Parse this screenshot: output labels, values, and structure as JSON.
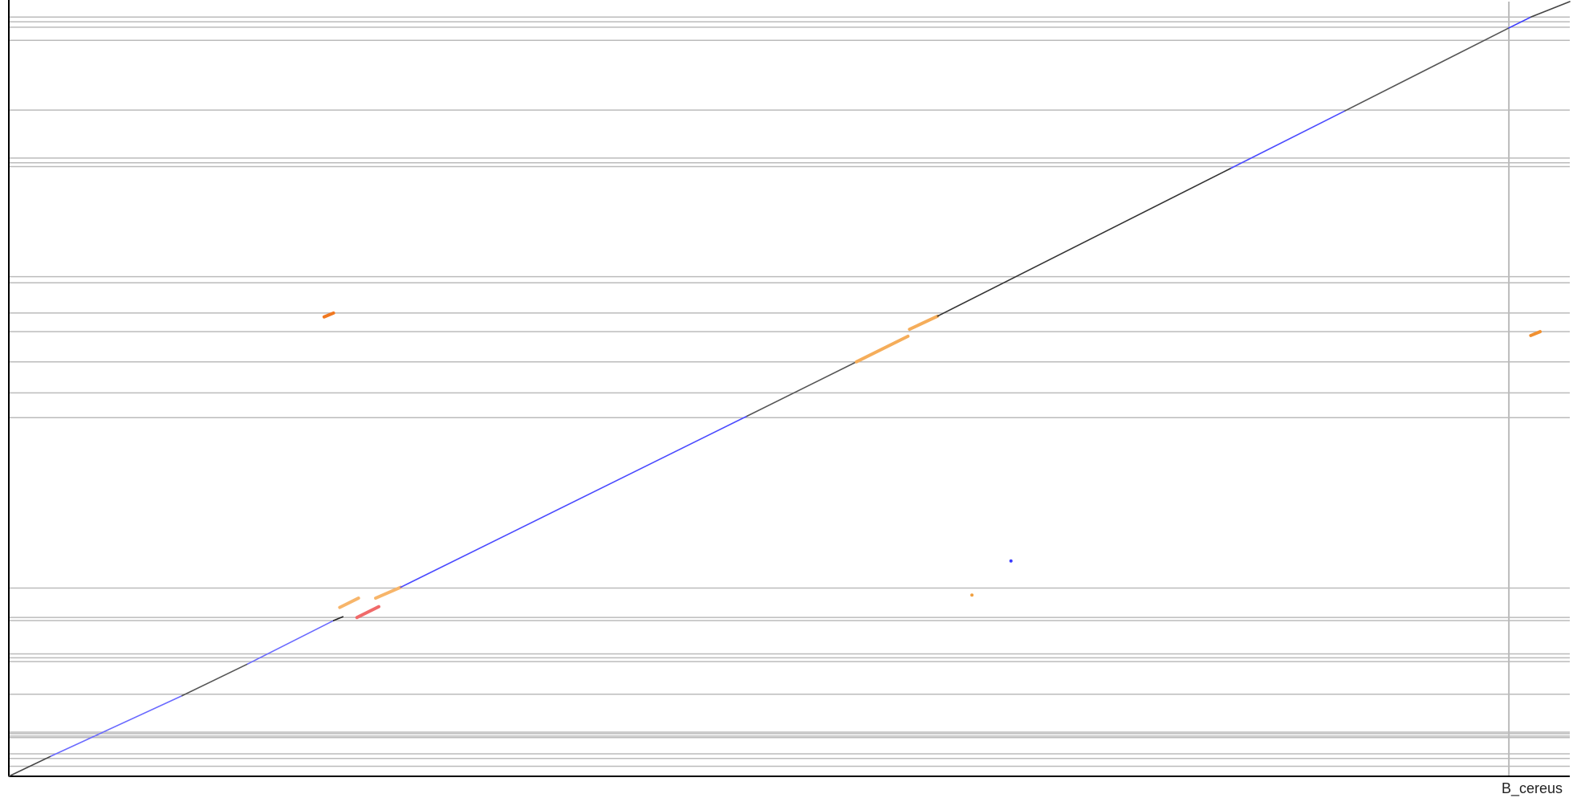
{
  "chart_data": {
    "type": "dotplot",
    "x_label": "B_cereus",
    "xlim": [
      0,
      100
    ],
    "ylim": [
      0,
      100
    ],
    "grid_color": "#bbbbbb",
    "y_boundaries": [
      98.0,
      97.4,
      96.7,
      95.0,
      86.0,
      79.8,
      79.2,
      78.7,
      64.5,
      63.7,
      59.8,
      57.4,
      53.5,
      49.5,
      46.3,
      24.3,
      20.5,
      20.1,
      15.8,
      15.3,
      14.8,
      10.6,
      5.7,
      5.5,
      5.2,
      5.0,
      2.9,
      2.3,
      1.3
    ],
    "x_boundaries": [
      96.1
    ],
    "segments": [
      {
        "x": [
          0,
          2.7
        ],
        "y": [
          0,
          2.6
        ],
        "color": "#444444"
      },
      {
        "x": [
          2.7,
          11.1
        ],
        "y": [
          2.6,
          10.4
        ],
        "color": "#6a6aff"
      },
      {
        "x": [
          11.1,
          15.3
        ],
        "y": [
          10.4,
          14.5
        ],
        "color": "#555555"
      },
      {
        "x": [
          15.3,
          20.8
        ],
        "y": [
          14.5,
          20.1
        ],
        "color": "#6a6aff"
      },
      {
        "x": [
          20.8,
          21.4
        ],
        "y": [
          20.1,
          20.6
        ],
        "color": "#222222"
      },
      {
        "x": [
          21.2,
          22.4
        ],
        "y": [
          21.8,
          23.0
        ],
        "color": "#f7b56a"
      },
      {
        "x": [
          23.5,
          25.1
        ],
        "y": [
          23.0,
          24.4
        ],
        "color": "#f7b56a"
      },
      {
        "x": [
          22.3,
          23.7
        ],
        "y": [
          20.5,
          21.9
        ],
        "color": "#f06a6a"
      },
      {
        "x": [
          25.1,
          47.3
        ],
        "y": [
          24.4,
          46.5
        ],
        "color": "#4a4aff"
      },
      {
        "x": [
          47.3,
          54.3
        ],
        "y": [
          46.5,
          53.5
        ],
        "color": "#555555"
      },
      {
        "x": [
          54.3,
          57.6
        ],
        "y": [
          53.5,
          56.8
        ],
        "color": "#f5ad5a"
      },
      {
        "x": [
          57.7,
          59.5
        ],
        "y": [
          57.7,
          59.4
        ],
        "color": "#f5ad5a"
      },
      {
        "x": [
          59.5,
          78.3
        ],
        "y": [
          59.4,
          78.5
        ],
        "color": "#333333"
      },
      {
        "x": [
          78.3,
          85.6
        ],
        "y": [
          78.5,
          85.9
        ],
        "color": "#4a4aff"
      },
      {
        "x": [
          85.6,
          96.1
        ],
        "y": [
          85.9,
          96.6
        ],
        "color": "#555555"
      },
      {
        "x": [
          96.1,
          97.5
        ],
        "y": [
          96.6,
          98.0
        ],
        "color": "#3a3aff"
      },
      {
        "x": [
          97.5,
          100
        ],
        "y": [
          98.0,
          100
        ],
        "color": "#444444"
      },
      {
        "x": [
          20.2,
          20.8
        ],
        "y": [
          59.3,
          59.8
        ],
        "color": "#f07820"
      },
      {
        "x": [
          97.5,
          98.1
        ],
        "y": [
          56.9,
          57.4
        ],
        "color": "#f09030"
      }
    ],
    "points": [
      {
        "x": 61.7,
        "y": 23.4,
        "color": "#f0a040"
      },
      {
        "x": 64.2,
        "y": 27.8,
        "color": "#3a3aff"
      }
    ]
  }
}
